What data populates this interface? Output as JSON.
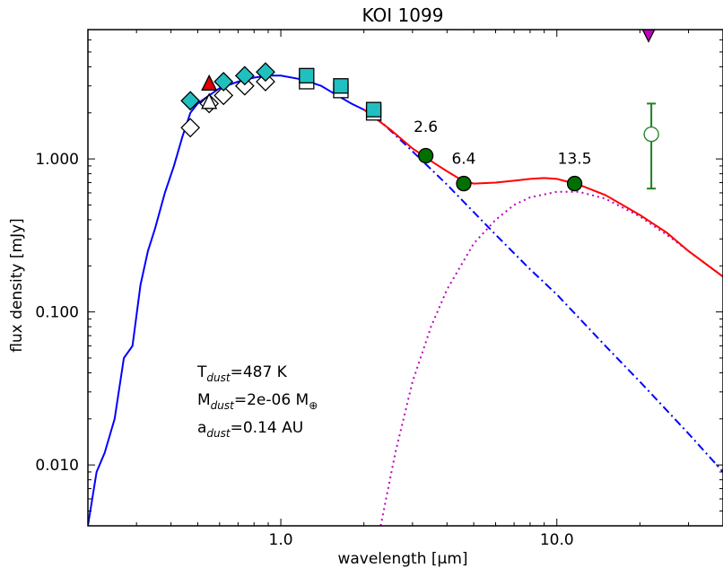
{
  "chart_data": {
    "type": "scatter",
    "title": "KOI 1099",
    "xlabel": "wavelength [μm]",
    "ylabel": "flux density [mJy]",
    "xscale": "log",
    "yscale": "log",
    "xlim": [
      0.2,
      40
    ],
    "ylim": [
      0.004,
      7
    ],
    "grid": false,
    "xticks": [
      {
        "value": 1.0,
        "label": "1.0"
      },
      {
        "value": 10.0,
        "label": "10.0"
      }
    ],
    "yticks": [
      {
        "value": 0.01,
        "label": "0.010"
      },
      {
        "value": 0.1,
        "label": "0.100"
      },
      {
        "value": 1.0,
        "label": "1.000"
      }
    ],
    "annotations": [
      {
        "x": 3.35,
        "y": 1.5,
        "text": "2.6"
      },
      {
        "x": 4.6,
        "y": 0.93,
        "text": "6.4"
      },
      {
        "x": 11.6,
        "y": 0.93,
        "text": "13.5"
      }
    ],
    "params": {
      "t_main": "T",
      "t_sub": "dust",
      "t_val": "=487 K",
      "m_main": "M",
      "m_sub": "dust",
      "m_val": "=2e-06 M",
      "m_unit_sub": "⊕",
      "a_main": "a",
      "a_sub": "dust",
      "a_val": "=0.14 AU"
    },
    "series": [
      {
        "name": "stellar-photosphere",
        "style": "solid",
        "color": "#0000ff",
        "x": [
          0.2,
          0.215,
          0.23,
          0.25,
          0.27,
          0.29,
          0.31,
          0.33,
          0.35,
          0.38,
          0.41,
          0.44,
          0.47,
          0.5,
          0.55,
          0.6,
          0.7,
          0.8,
          0.9,
          1.0,
          1.2,
          1.4,
          1.6,
          1.8,
          2.0,
          2.2
        ],
        "y": [
          0.004,
          0.009,
          0.012,
          0.02,
          0.05,
          0.06,
          0.15,
          0.25,
          0.35,
          0.6,
          0.9,
          1.4,
          2.0,
          2.3,
          2.6,
          2.9,
          3.2,
          3.4,
          3.5,
          3.5,
          3.3,
          3.0,
          2.6,
          2.3,
          2.1,
          1.9
        ]
      },
      {
        "name": "photosphere-extrapolation",
        "style": "dashdot",
        "color": "#0000ff",
        "x": [
          2.2,
          3.0,
          4.0,
          6.0,
          8.0,
          10.0,
          15.0,
          20.0,
          30.0,
          40.0
        ],
        "y": [
          1.9,
          1.12,
          0.68,
          0.32,
          0.19,
          0.13,
          0.06,
          0.035,
          0.016,
          0.009
        ]
      },
      {
        "name": "dust-model",
        "style": "dotted",
        "color": "#bf00bf",
        "x": [
          2.3,
          2.6,
          3.0,
          3.5,
          4.0,
          5.0,
          6.0,
          7.0,
          8.0,
          10.0,
          12.0,
          15.0,
          20.0,
          25.0,
          30.0,
          40.0
        ],
        "y": [
          0.004,
          0.012,
          0.035,
          0.08,
          0.14,
          0.28,
          0.4,
          0.5,
          0.56,
          0.61,
          0.61,
          0.55,
          0.42,
          0.32,
          0.25,
          0.17
        ]
      },
      {
        "name": "total-model",
        "style": "solid",
        "color": "#ff0000",
        "x": [
          2.0,
          2.5,
          3.0,
          3.5,
          4.0,
          4.5,
          5.0,
          6.0,
          7.0,
          8.0,
          9.0,
          10.0,
          12.0,
          15.0,
          20.0,
          25.0,
          30.0,
          40.0
        ],
        "y": [
          2.1,
          1.55,
          1.17,
          0.97,
          0.83,
          0.73,
          0.69,
          0.7,
          0.72,
          0.74,
          0.75,
          0.74,
          0.68,
          0.58,
          0.43,
          0.33,
          0.25,
          0.17
        ]
      }
    ],
    "markers": [
      {
        "group": "model-photometry",
        "shape": "diamond",
        "fill": "#ffffff",
        "x": [
          0.47,
          0.55,
          0.62,
          0.74,
          0.88
        ],
        "y": [
          1.6,
          2.3,
          2.6,
          3.0,
          3.2
        ]
      },
      {
        "group": "observed-photometry",
        "shape": "diamond",
        "fill": "#20c0c0",
        "x": [
          0.47,
          0.62,
          0.74,
          0.88
        ],
        "y": [
          2.4,
          3.2,
          3.5,
          3.7
        ]
      },
      {
        "group": "model-photometry",
        "shape": "triangle-up",
        "fill": "#ffffff",
        "x": [
          0.55
        ],
        "y": [
          2.35
        ]
      },
      {
        "group": "observed-photometry",
        "shape": "triangle-up",
        "fill": "#e00000",
        "x": [
          0.55
        ],
        "y": [
          3.1
        ]
      },
      {
        "group": "model-photometry",
        "shape": "square",
        "fill": "#ffffff",
        "x": [
          1.24,
          1.65,
          2.17
        ],
        "y": [
          3.2,
          2.8,
          2.0
        ]
      },
      {
        "group": "observed-photometry",
        "shape": "square",
        "fill": "#20c0c0",
        "x": [
          1.24,
          1.65,
          2.17
        ],
        "y": [
          3.5,
          3.0,
          2.1
        ]
      },
      {
        "group": "ir-photometry",
        "shape": "circle",
        "fill": "#007000",
        "x": [
          3.35,
          4.6,
          11.6
        ],
        "y": [
          1.05,
          0.69,
          0.69
        ]
      },
      {
        "group": "uncertain-point",
        "shape": "circle-open",
        "fill": "#ffffff",
        "stroke": "#208020",
        "x": [
          22
        ],
        "y": [
          1.45
        ],
        "yerr": [
          0.64,
          2.3
        ]
      },
      {
        "group": "upper-limit",
        "shape": "triangle-down",
        "fill": "#c000c0",
        "x": [
          21.5
        ],
        "y": [
          6.6
        ]
      }
    ]
  }
}
